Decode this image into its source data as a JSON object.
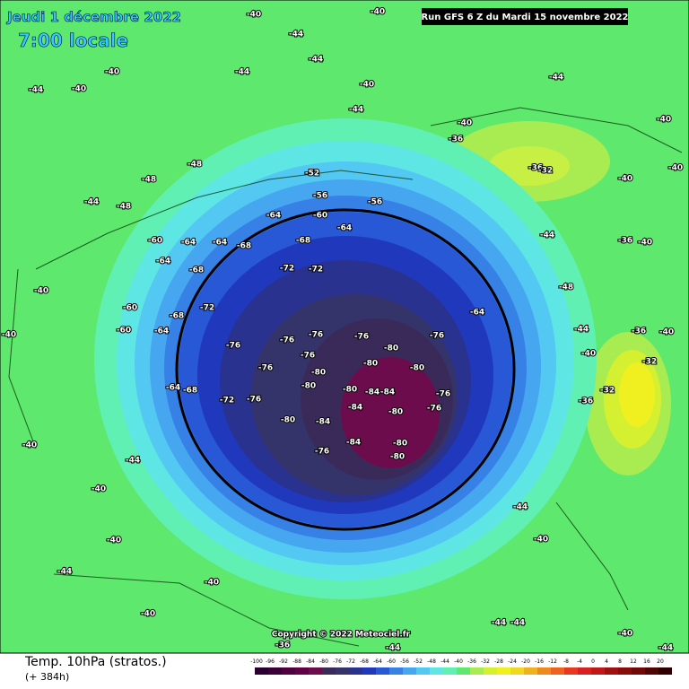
{
  "header": {
    "date": "Jeudi 1 décembre 2022",
    "time": "7:00 locale",
    "run": "Run GFS 6 Z du Mardi 15 novembre 2022"
  },
  "map": {
    "labels": [
      "-40",
      "-40",
      "-44",
      "-44",
      "-40",
      "-40",
      "-44",
      "-44",
      "-40",
      "-44",
      "-44",
      "-40",
      "-36",
      "-36",
      "-32",
      "-40",
      "-40",
      "-48",
      "-48",
      "-44",
      "-48",
      "-52",
      "-56",
      "-56",
      "-64",
      "-60",
      "-64",
      "-60",
      "-64",
      "-64",
      "-68",
      "-68",
      "-64",
      "-68",
      "-72",
      "-72",
      "-72",
      "-68",
      "-60",
      "-60",
      "-64",
      "-76",
      "-76",
      "-76",
      "-76",
      "-80",
      "-76",
      "-64",
      "-76",
      "-76",
      "-80",
      "-80",
      "-80",
      "-64",
      "-68",
      "-72",
      "-76",
      "-80",
      "-80",
      "-84",
      "-84",
      "-76",
      "-84",
      "-80",
      "-76",
      "-80",
      "-84",
      "-84",
      "-80",
      "-80",
      "-76",
      "-40",
      "-36",
      "-32",
      "-32",
      "-36",
      "-40",
      "-40",
      "-40",
      "-44",
      "-40",
      "-40",
      "-44",
      "-40",
      "-40",
      "-44",
      "-40",
      "-40",
      "-44",
      "-44",
      "-40",
      "-44",
      "-36",
      "-44",
      "-44",
      "-48",
      "-44",
      "-40",
      "-36",
      "-40"
    ],
    "copyright": "Copyright © 2022 Meteociel.fr"
  },
  "footer": {
    "title": "Temp. 10hPa (stratos.)",
    "lead": "(+ 384h)",
    "scale": [
      "-100",
      "-96",
      "-92",
      "-88",
      "-84",
      "-80",
      "-76",
      "-72",
      "-68",
      "-64",
      "-60",
      "-56",
      "-52",
      "-48",
      "-44",
      "-40",
      "-36",
      "-32",
      "-28",
      "-24",
      "-20",
      "-16",
      "-12",
      "-8",
      "-4",
      "0",
      "4",
      "8",
      "12",
      "16",
      "20"
    ]
  }
}
